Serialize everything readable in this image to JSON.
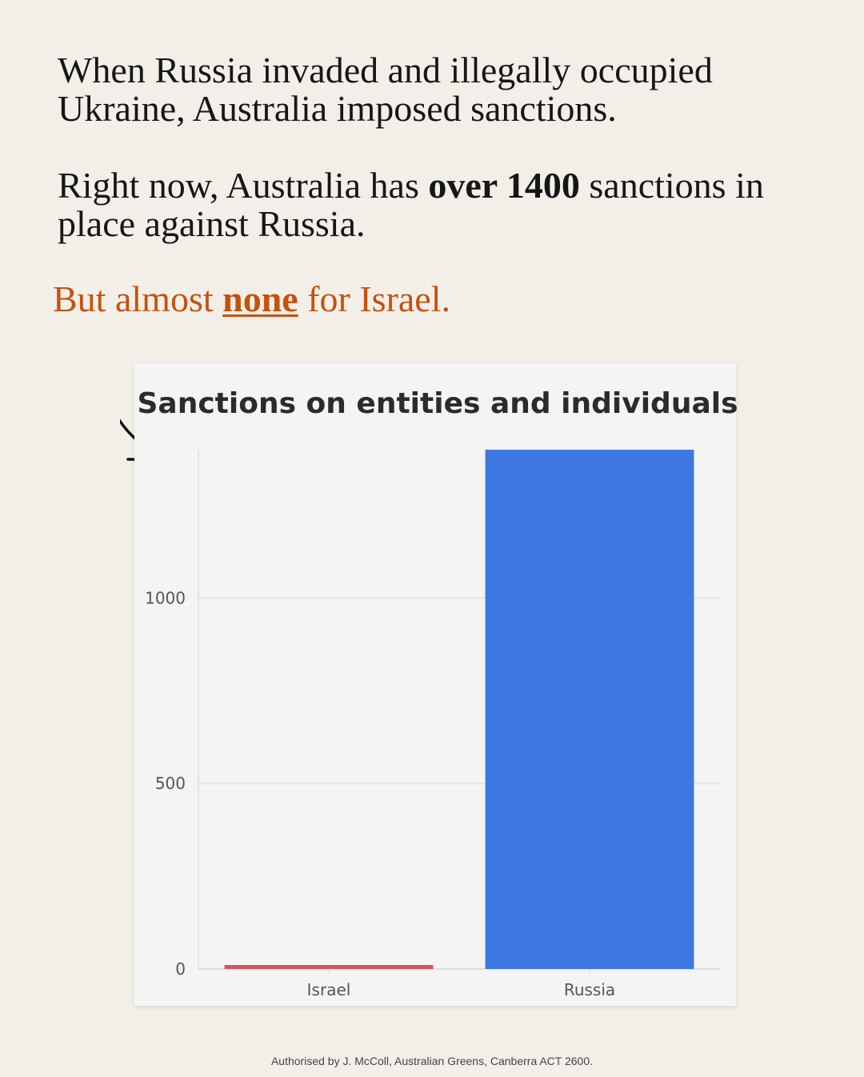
{
  "intro": {
    "line1": "When Russia invaded and illegally occupied Ukraine, Australia imposed sanctions.",
    "line2_before": "Right now, Australia has ",
    "line2_bold": "over 1400",
    "line2_after": " sanctions in place against Russia.",
    "accent_before": "But almost ",
    "accent_bold": "none",
    "accent_after": " for Israel."
  },
  "colors": {
    "accent": "#c4520f",
    "israel": "#d4555e",
    "russia": "#3d78e0",
    "background": "#f2efe8"
  },
  "chart_data": {
    "type": "bar",
    "title": "Sanctions on entities and individuals",
    "categories": [
      "Israel",
      "Russia"
    ],
    "values": [
      10,
      1400
    ],
    "ylim": [
      0,
      1400
    ],
    "yticks": [
      0,
      500,
      1000
    ],
    "xlabel": "",
    "ylabel": "",
    "grid": true
  },
  "footer": "Authorised by J. McColl, Australian Greens, Canberra ACT 2600."
}
